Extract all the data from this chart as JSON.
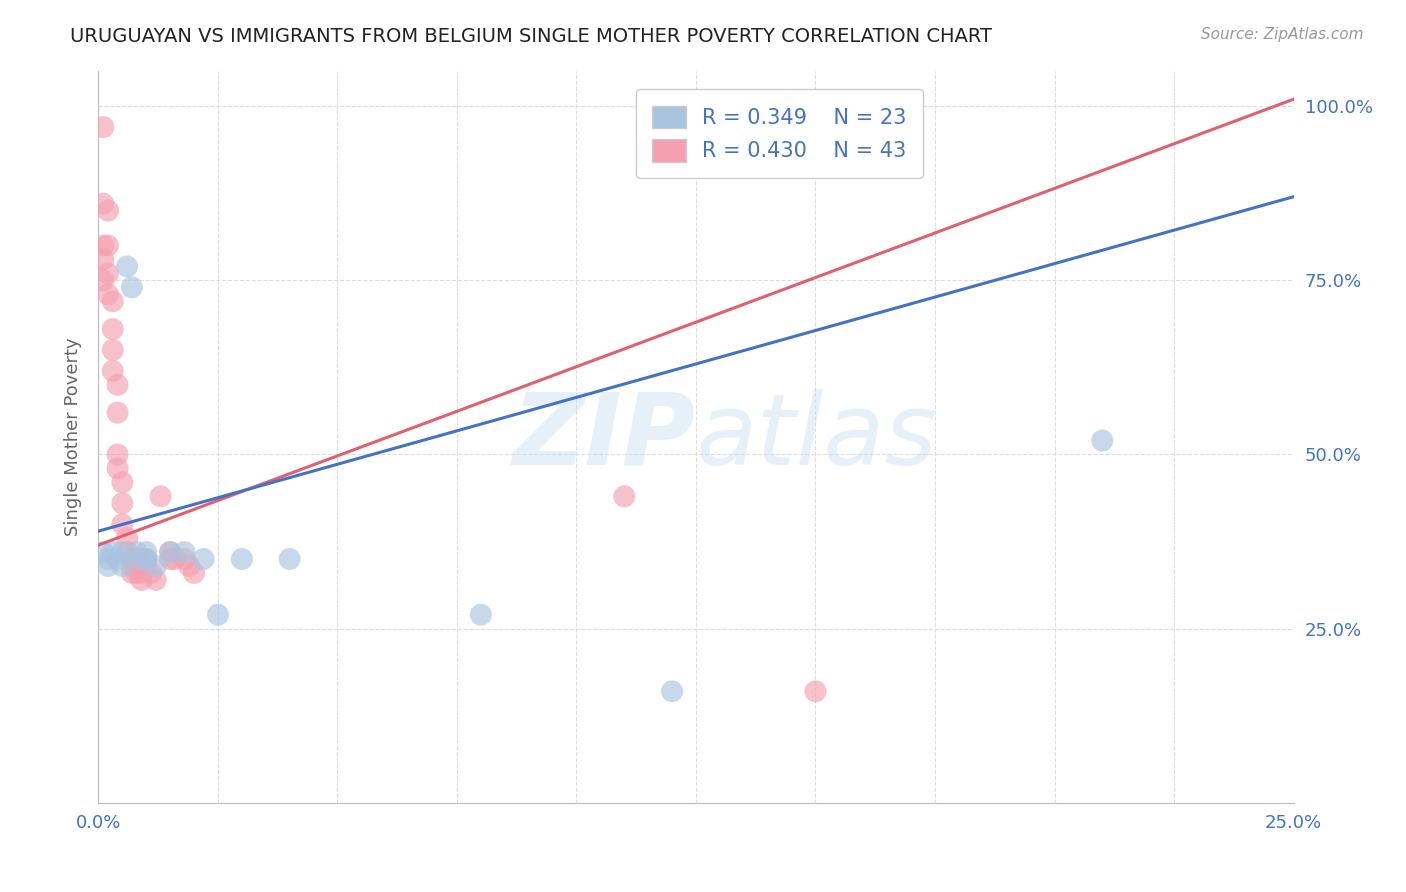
{
  "title": "URUGUAYAN VS IMMIGRANTS FROM BELGIUM SINGLE MOTHER POVERTY CORRELATION CHART",
  "source": "Source: ZipAtlas.com",
  "ylabel": "Single Mother Poverty",
  "xlim": [
    0,
    0.25
  ],
  "ylim": [
    0,
    1.05
  ],
  "xticks": [
    0,
    0.025,
    0.05,
    0.075,
    0.1,
    0.125,
    0.15,
    0.175,
    0.2,
    0.225,
    0.25
  ],
  "xtick_labels": [
    "0.0%",
    "",
    "",
    "",
    "",
    "",
    "",
    "",
    "",
    "",
    "25.0%"
  ],
  "yticks": [
    0.25,
    0.5,
    0.75,
    1.0
  ],
  "ytick_labels": [
    "25.0%",
    "50.0%",
    "75.0%",
    "100.0%"
  ],
  "legend_blue_r": "R = 0.349",
  "legend_blue_n": "N = 23",
  "legend_pink_r": "R = 0.430",
  "legend_pink_n": "N = 43",
  "blue_color": "#a8c4e0",
  "pink_color": "#f4a0b0",
  "blue_line_color": "#4472c4",
  "pink_line_color": "#e06070",
  "watermark_zip": "ZIP",
  "watermark_atlas": "atlas",
  "blue_scatter_x": [
    0.001,
    0.002,
    0.002,
    0.003,
    0.004,
    0.005,
    0.005,
    0.006,
    0.007,
    0.008,
    0.009,
    0.01,
    0.01,
    0.012,
    0.015,
    0.018,
    0.022,
    0.025,
    0.03,
    0.04,
    0.08,
    0.12,
    0.21
  ],
  "blue_scatter_y": [
    0.36,
    0.34,
    0.35,
    0.36,
    0.35,
    0.34,
    0.36,
    0.77,
    0.74,
    0.36,
    0.35,
    0.36,
    0.35,
    0.34,
    0.36,
    0.36,
    0.35,
    0.27,
    0.35,
    0.35,
    0.27,
    0.16,
    0.52
  ],
  "pink_scatter_x": [
    0.001,
    0.001,
    0.001,
    0.001,
    0.001,
    0.002,
    0.002,
    0.002,
    0.002,
    0.003,
    0.003,
    0.003,
    0.003,
    0.004,
    0.004,
    0.004,
    0.004,
    0.005,
    0.005,
    0.005,
    0.006,
    0.006,
    0.007,
    0.007,
    0.007,
    0.008,
    0.008,
    0.008,
    0.009,
    0.009,
    0.01,
    0.01,
    0.011,
    0.012,
    0.013,
    0.015,
    0.015,
    0.016,
    0.018,
    0.019,
    0.02,
    0.11,
    0.15
  ],
  "pink_scatter_y": [
    0.97,
    0.86,
    0.8,
    0.78,
    0.75,
    0.85,
    0.8,
    0.76,
    0.73,
    0.72,
    0.68,
    0.65,
    0.62,
    0.6,
    0.56,
    0.5,
    0.48,
    0.46,
    0.43,
    0.4,
    0.38,
    0.36,
    0.35,
    0.34,
    0.33,
    0.35,
    0.34,
    0.33,
    0.33,
    0.32,
    0.35,
    0.34,
    0.33,
    0.32,
    0.44,
    0.36,
    0.35,
    0.35,
    0.35,
    0.34,
    0.33,
    0.44,
    0.16
  ],
  "blue_line_x": [
    0,
    0.25
  ],
  "blue_line_y": [
    0.39,
    0.87
  ],
  "pink_line_x": [
    0,
    0.25
  ],
  "pink_line_y": [
    0.37,
    1.01
  ],
  "background_color": "#ffffff",
  "grid_color": "#dddddd"
}
